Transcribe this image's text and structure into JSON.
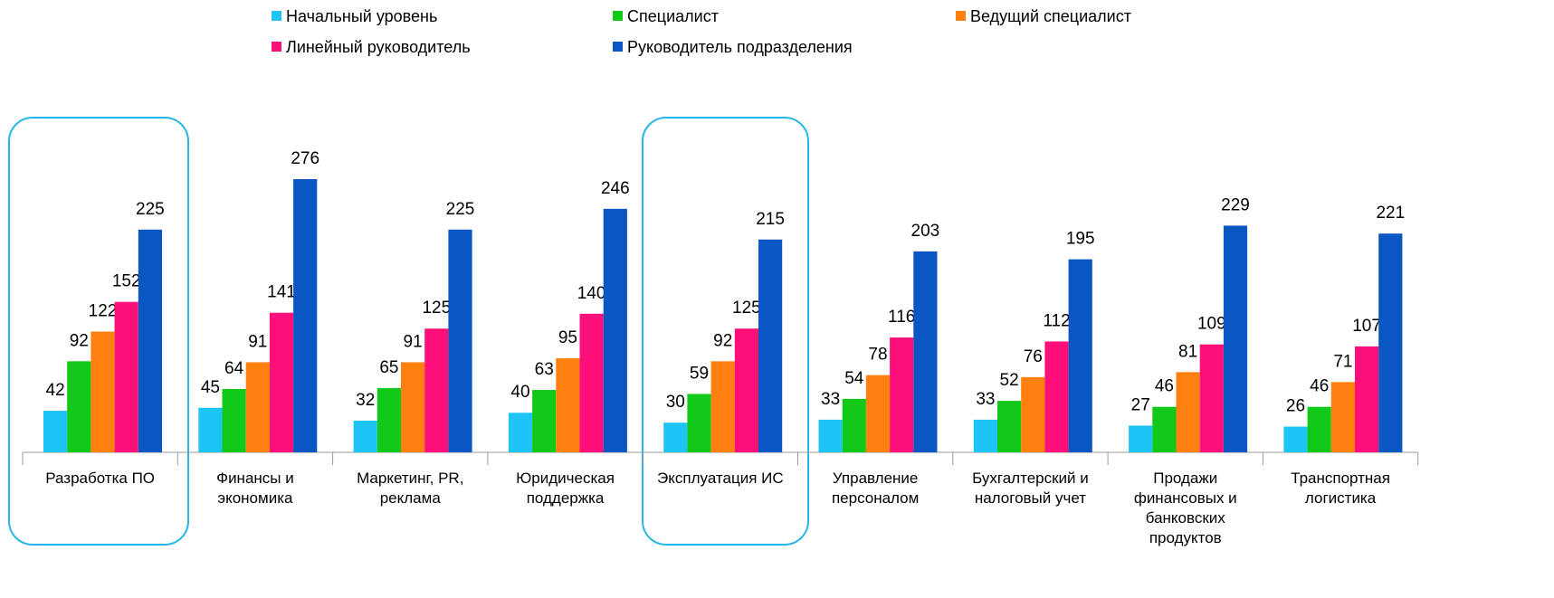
{
  "chart_data": {
    "type": "bar",
    "categories": [
      "Разработка ПО",
      "Финансы и экономика",
      "Маркетинг, PR, реклама",
      "Юридическая поддержка",
      "Эксплуатация ИС",
      "Управление персоналом",
      "Бухгалтерский и налоговый учет",
      "Продажи финансовых и банковских продуктов",
      "Транспортная логистика"
    ],
    "series": [
      {
        "name": "Начальный уровень",
        "color": "#1ec4f4",
        "values": [
          42,
          45,
          32,
          40,
          30,
          33,
          33,
          27,
          26
        ]
      },
      {
        "name": "Специалист",
        "color": "#12c91a",
        "values": [
          92,
          64,
          65,
          63,
          59,
          54,
          52,
          46,
          46
        ]
      },
      {
        "name": "Ведущий специалист",
        "color": "#ff7f0f",
        "values": [
          122,
          91,
          91,
          95,
          92,
          78,
          76,
          81,
          71
        ]
      },
      {
        "name": "Линейный руководитель",
        "color": "#ff0f7a",
        "values": [
          152,
          141,
          125,
          140,
          125,
          116,
          112,
          109,
          107
        ]
      },
      {
        "name": "Руководитель подразделения",
        "color": "#0a56c2",
        "values": [
          225,
          276,
          225,
          246,
          215,
          203,
          195,
          229,
          221
        ]
      }
    ]
  }
}
